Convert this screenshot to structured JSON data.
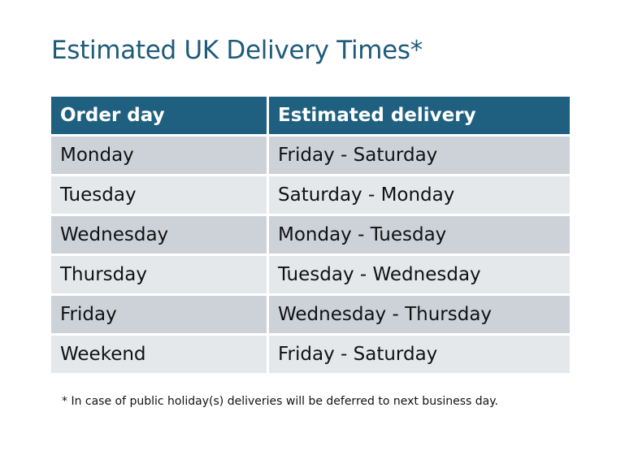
{
  "title": "Estimated UK Delivery Times*",
  "table": {
    "headers": [
      "Order day",
      "Estimated delivery"
    ],
    "rows": [
      [
        "Monday",
        "Friday - Saturday"
      ],
      [
        "Tuesday",
        "Saturday - Monday"
      ],
      [
        "Wednesday",
        "Monday - Tuesday"
      ],
      [
        "Thursday",
        "Tuesday - Wednesday"
      ],
      [
        "Friday",
        "Wednesday - Thursday"
      ],
      [
        "Weekend",
        "Friday - Saturday"
      ]
    ]
  },
  "footnote": "* In case of public holiday(s) deliveries will be deferred to next business day.",
  "colors": {
    "header": "#1f6080",
    "title": "#1f5b7a",
    "row_dark": "#cdd1d8",
    "row_light": "#e5e8eb"
  }
}
